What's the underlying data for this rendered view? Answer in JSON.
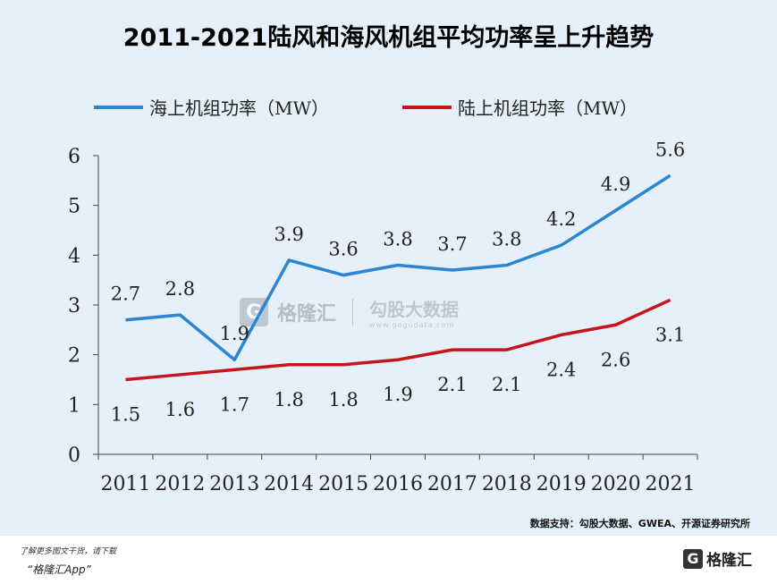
{
  "title": "2011-2021陆风和海风机组平均功率呈上升趋势",
  "chart_data": {
    "type": "line",
    "categories": [
      "2011",
      "2012",
      "2013",
      "2014",
      "2015",
      "2016",
      "2017",
      "2018",
      "2019",
      "2020",
      "2021"
    ],
    "series": [
      {
        "name": "海上机组功率（MW）",
        "color": "#2a86d1",
        "values": [
          2.7,
          2.8,
          1.9,
          3.9,
          3.6,
          3.8,
          3.7,
          3.8,
          4.2,
          4.9,
          5.6
        ]
      },
      {
        "name": "陆上机组功率（MW）",
        "color": "#c4161c",
        "values": [
          1.5,
          1.6,
          1.7,
          1.8,
          1.8,
          1.9,
          2.1,
          2.1,
          2.4,
          2.6,
          3.1
        ]
      }
    ],
    "ylim": [
      0,
      6
    ],
    "yticks": [
      "0",
      "1",
      "2",
      "3",
      "4",
      "5",
      "6"
    ],
    "grid": false,
    "legend_position": "top"
  },
  "watermark": {
    "logo_glyph": "G",
    "brand": "格隆汇",
    "partner": "勾股大数据",
    "partner_url": "www.gogudata.com"
  },
  "source": "数据支持：勾股大数据、GWEA、开源证券研究所",
  "footer": {
    "line1": "了解更多图文干货，请下载",
    "line2": "“格隆汇App”",
    "logo_glyph": "G",
    "logo_text": "格隆汇"
  }
}
